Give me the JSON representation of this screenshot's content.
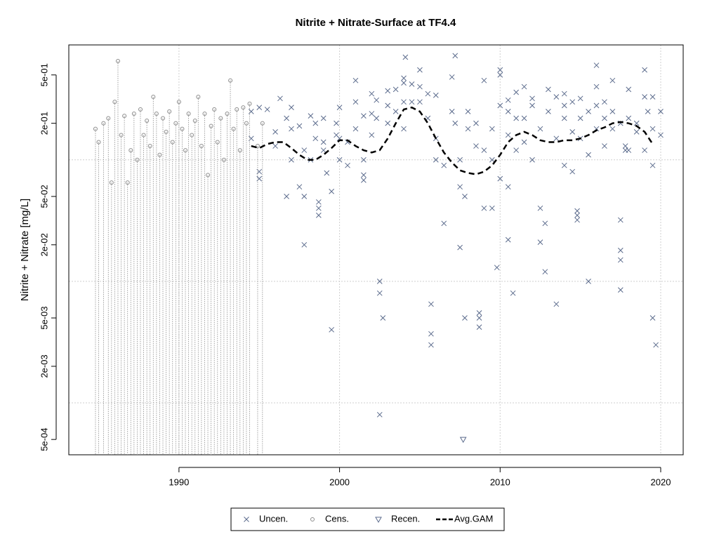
{
  "chart_data": {
    "type": "scatter",
    "title": "Nitrite + Nitrate-Surface at TF4.4",
    "y_label": "Nitrite + Nitrate [mg/L]",
    "log_y": true,
    "grid": true,
    "legend": "bottom",
    "xlim": [
      1983.14,
      2021.4
    ],
    "xticks": [
      1990,
      2000,
      2010,
      2020
    ],
    "ylim": [
      0.000374,
      0.883
    ],
    "yticks": [
      {
        "value": 0.5,
        "label": "5e-01"
      },
      {
        "value": 0.2,
        "label": "2e-01"
      },
      {
        "value": 0.05,
        "label": "5e-02"
      },
      {
        "value": 0.02,
        "label": "2e-02"
      },
      {
        "value": 0.005,
        "label": "5e-03"
      },
      {
        "value": 0.002,
        "label": "2e-03"
      },
      {
        "value": 0.0005,
        "label": "5e-04"
      }
    ],
    "ygrid": [
      0.1,
      0.01,
      0.001
    ],
    "series": [
      {
        "name": "Uncen.",
        "color": "#5b6b8c",
        "marker": "x",
        "x": [
          1994.5,
          1994.5,
          1995,
          1995,
          1995,
          1995.5,
          1996,
          1996,
          1996.3,
          1996.7,
          1996.7,
          1997,
          1997,
          1997,
          1997.5,
          1997.5,
          1997.8,
          1997.8,
          1997.8,
          1998.2,
          1998.2,
          1998.5,
          1998.5,
          1998.7,
          1998.7,
          1998.7,
          1999,
          1999,
          1999,
          1999.2,
          1999.5,
          1999.5,
          1999.8,
          1999.8,
          2000,
          2000,
          2000,
          2000.5,
          2000.5,
          2001,
          2001,
          2001,
          2001.5,
          2001.5,
          2001.5,
          2001.5,
          2002,
          2002,
          2002,
          2002.3,
          2002.3,
          2002.5,
          2002.5,
          2002.5,
          2002.7,
          2003,
          2003,
          2003,
          2003.5,
          2003.5,
          2004,
          2004,
          2004,
          2004,
          2004.1,
          2004.5,
          2004.5,
          2005,
          2005,
          2005,
          2005.5,
          2005.5,
          2005.7,
          2005.7,
          2005.7,
          2006,
          2006,
          2006,
          2006.5,
          2006.5,
          2007,
          2007,
          2007.2,
          2007.2,
          2007.5,
          2007.5,
          2007.5,
          2007.8,
          2007.8,
          2008,
          2008,
          2008.5,
          2008.5,
          2008.7,
          2008.7,
          2008.7,
          2009,
          2009,
          2009,
          2009.5,
          2009.5,
          2009.5,
          2009.8,
          2010,
          2010,
          2010,
          2010,
          2010.5,
          2010.5,
          2010.5,
          2010.5,
          2010.5,
          2010.8,
          2011,
          2011,
          2011,
          2011.5,
          2011.5,
          2011.5,
          2012,
          2012,
          2012,
          2012.5,
          2012.5,
          2012.5,
          2012.8,
          2012.8,
          2013,
          2013,
          2013.5,
          2013.5,
          2013.5,
          2014,
          2014,
          2014,
          2014,
          2014.5,
          2014.5,
          2014.5,
          2014.8,
          2014.8,
          2014.8,
          2015,
          2015,
          2015,
          2015.5,
          2015.5,
          2015.5,
          2016,
          2016,
          2016,
          2016,
          2016.5,
          2016.5,
          2016.5,
          2017,
          2017,
          2017,
          2017.5,
          2017.5,
          2017.5,
          2017.5,
          2017.5,
          2017.8,
          2017.8,
          2018,
          2018,
          2018,
          2018.5,
          2018.5,
          2019,
          2019,
          2019,
          2019.2,
          2019.5,
          2019.5,
          2019.5,
          2019.5,
          2019.7,
          2020,
          2020
        ],
        "values": [
          0.25,
          0.15,
          0.27,
          0.08,
          0.07,
          0.26,
          0.13,
          0.17,
          0.32,
          0.22,
          0.05,
          0.27,
          0.18,
          0.1,
          0.19,
          0.06,
          0.02,
          0.05,
          0.12,
          0.23,
          0.1,
          0.2,
          0.15,
          0.035,
          0.04,
          0.045,
          0.22,
          0.14,
          0.12,
          0.078,
          0.004,
          0.055,
          0.2,
          0.16,
          0.27,
          0.15,
          0.1,
          0.09,
          0.14,
          0.45,
          0.3,
          0.18,
          0.23,
          0.1,
          0.075,
          0.068,
          0.35,
          0.16,
          0.24,
          0.31,
          0.22,
          0.01,
          0.0008,
          0.008,
          0.005,
          0.37,
          0.28,
          0.2,
          0.38,
          0.25,
          0.47,
          0.43,
          0.3,
          0.18,
          0.7,
          0.3,
          0.42,
          0.55,
          0.4,
          0.3,
          0.35,
          0.22,
          0.003,
          0.0037,
          0.0065,
          0.34,
          0.15,
          0.1,
          0.03,
          0.09,
          0.48,
          0.25,
          0.72,
          0.2,
          0.1,
          0.06,
          0.019,
          0.05,
          0.005,
          0.25,
          0.18,
          0.2,
          0.13,
          0.0055,
          0.0042,
          0.005,
          0.04,
          0.45,
          0.12,
          0.18,
          0.1,
          0.04,
          0.013,
          0.28,
          0.55,
          0.5,
          0.07,
          0.31,
          0.25,
          0.16,
          0.06,
          0.022,
          0.008,
          0.36,
          0.22,
          0.12,
          0.4,
          0.22,
          0.14,
          0.32,
          0.28,
          0.1,
          0.18,
          0.04,
          0.021,
          0.03,
          0.012,
          0.38,
          0.25,
          0.33,
          0.15,
          0.0065,
          0.35,
          0.28,
          0.22,
          0.09,
          0.3,
          0.17,
          0.08,
          0.035,
          0.032,
          0.038,
          0.32,
          0.22,
          0.15,
          0.25,
          0.11,
          0.01,
          0.6,
          0.4,
          0.28,
          0.18,
          0.3,
          0.22,
          0.13,
          0.45,
          0.25,
          0.18,
          0.2,
          0.032,
          0.018,
          0.0085,
          0.015,
          0.13,
          0.12,
          0.38,
          0.22,
          0.12,
          0.2,
          0.17,
          0.55,
          0.33,
          0.12,
          0.25,
          0.33,
          0.18,
          0.09,
          0.005,
          0.003,
          0.25,
          0.16
        ]
      },
      {
        "name": "Cens.",
        "color": "#8c8c8c",
        "marker": "circle-censored",
        "x": [
          1984.8,
          1985,
          1985.3,
          1985.6,
          1985.8,
          1986,
          1986.2,
          1986.4,
          1986.6,
          1986.8,
          1987,
          1987.2,
          1987.4,
          1987.6,
          1987.8,
          1988,
          1988.2,
          1988.4,
          1988.6,
          1988.8,
          1989,
          1989.2,
          1989.4,
          1989.6,
          1989.8,
          1990,
          1990.2,
          1990.4,
          1990.6,
          1990.8,
          1991,
          1991.2,
          1991.4,
          1991.6,
          1991.8,
          1992,
          1992.2,
          1992.4,
          1992.6,
          1992.8,
          1993,
          1993.2,
          1993.4,
          1993.6,
          1993.8,
          1994,
          1994.2,
          1994.4,
          1994.9,
          1995.2
        ],
        "values": [
          0.18,
          0.14,
          0.2,
          0.22,
          0.065,
          0.3,
          0.65,
          0.16,
          0.23,
          0.065,
          0.12,
          0.24,
          0.1,
          0.26,
          0.16,
          0.21,
          0.13,
          0.33,
          0.24,
          0.11,
          0.22,
          0.17,
          0.25,
          0.14,
          0.2,
          0.3,
          0.18,
          0.12,
          0.24,
          0.16,
          0.21,
          0.33,
          0.13,
          0.24,
          0.075,
          0.19,
          0.26,
          0.14,
          0.22,
          0.1,
          0.24,
          0.45,
          0.18,
          0.26,
          0.12,
          0.27,
          0.2,
          0.29,
          0.13,
          0.2
        ]
      },
      {
        "name": "Recen.",
        "color": "#5b6b8c",
        "marker": "triangle",
        "x": [
          2007.7
        ],
        "values": [
          0.0005
        ]
      },
      {
        "name": "Avg.GAM",
        "color": "#000000",
        "marker": "dashed-line",
        "x": [
          1994.5,
          1995,
          1995.5,
          1996,
          1996.5,
          1997,
          1997.5,
          1998,
          1998.5,
          1999,
          1999.5,
          2000,
          2000.5,
          2001,
          2001.5,
          2002,
          2002.5,
          2003,
          2003.5,
          2004,
          2004.5,
          2005,
          2005.5,
          2006,
          2006.5,
          2007,
          2007.5,
          2008,
          2008.5,
          2009,
          2009.5,
          2010,
          2010.5,
          2011,
          2011.5,
          2012,
          2012.5,
          2013,
          2013.5,
          2014,
          2014.5,
          2015,
          2015.5,
          2016,
          2016.5,
          2017,
          2017.5,
          2018,
          2018.5,
          2019,
          2019.5
        ],
        "values": [
          0.13,
          0.125,
          0.135,
          0.14,
          0.14,
          0.125,
          0.11,
          0.1,
          0.1,
          0.11,
          0.125,
          0.145,
          0.145,
          0.13,
          0.12,
          0.115,
          0.12,
          0.15,
          0.2,
          0.26,
          0.27,
          0.25,
          0.2,
          0.15,
          0.115,
          0.095,
          0.082,
          0.078,
          0.076,
          0.08,
          0.09,
          0.11,
          0.14,
          0.16,
          0.17,
          0.16,
          0.145,
          0.14,
          0.14,
          0.145,
          0.145,
          0.15,
          0.16,
          0.175,
          0.185,
          0.2,
          0.205,
          0.2,
          0.19,
          0.17,
          0.135
        ]
      }
    ]
  }
}
